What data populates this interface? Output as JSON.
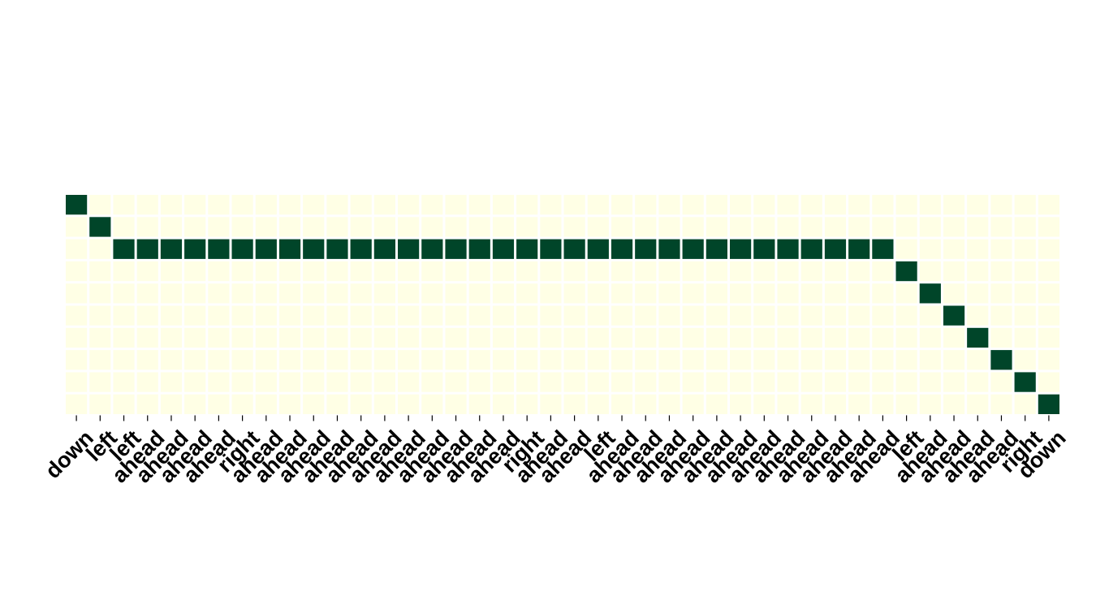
{
  "chart_data": {
    "type": "heatmap",
    "title": "",
    "xlabel": "",
    "ylabel": "",
    "x_tick_labels": [
      "down",
      "left",
      "left",
      "ahead",
      "ahead",
      "ahead",
      "ahead",
      "right",
      "ahead",
      "ahead",
      "ahead",
      "ahead",
      "ahead",
      "ahead",
      "ahead",
      "ahead",
      "ahead",
      "ahead",
      "ahead",
      "right",
      "ahead",
      "ahead",
      "left",
      "ahead",
      "ahead",
      "ahead",
      "ahead",
      "ahead",
      "ahead",
      "ahead",
      "ahead",
      "ahead",
      "ahead",
      "ahead",
      "ahead",
      "left",
      "ahead",
      "ahead",
      "ahead",
      "ahead",
      "right",
      "down"
    ],
    "y_tick_labels": [],
    "n_rows": 10,
    "row_index_per_column": [
      0,
      1,
      2,
      2,
      2,
      2,
      2,
      2,
      2,
      2,
      2,
      2,
      2,
      2,
      2,
      2,
      2,
      2,
      2,
      2,
      2,
      2,
      2,
      2,
      2,
      2,
      2,
      2,
      2,
      2,
      2,
      2,
      2,
      2,
      2,
      3,
      4,
      5,
      6,
      7,
      8,
      9
    ],
    "value_range": [
      0,
      1
    ],
    "grid": false,
    "legend": "none",
    "colors": {
      "low": "#ffffe5",
      "high": "#004529",
      "cell_border": "#ffffff"
    }
  }
}
